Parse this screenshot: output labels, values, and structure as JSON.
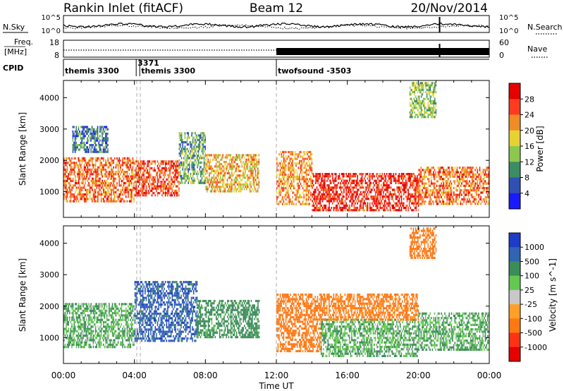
{
  "header": {
    "station": "Rankin Inlet (fitACF)",
    "beam": "Beam 12",
    "date": "20/Nov/2014"
  },
  "noise_panel": {
    "left_label": "N.Sky",
    "right_label": "N.Search",
    "left_ticks": [
      "10^5",
      "10^0"
    ],
    "right_ticks": [
      "10^5",
      "10^0"
    ]
  },
  "freq_panel": {
    "left_label_1": "Freq.",
    "left_label_2": "[MHz]",
    "left_ticks": [
      "18",
      "8"
    ],
    "right_label": "Nave",
    "right_ticks": [
      "60",
      "0"
    ]
  },
  "cpid": {
    "label": "CPID",
    "segments": [
      {
        "text": "themis 3300",
        "start_hour": 0.0
      },
      {
        "text": "3371",
        "start_hour": 4.1
      },
      {
        "text": "themis 3300",
        "start_hour": 4.3
      },
      {
        "text": "twofsound -3503",
        "start_hour": 12.0
      }
    ]
  },
  "axes": {
    "ylabel": "Slant Range [km]",
    "yticks": [
      "1000",
      "2000",
      "3000",
      "4000"
    ],
    "xlabel": "Time UT",
    "xticks": [
      "00:00",
      "04:00",
      "08:00",
      "12:00",
      "16:00",
      "20:00",
      "00:00"
    ]
  },
  "power_scale": {
    "label": "Power [dB]",
    "ticks": [
      "4",
      "8",
      "12",
      "16",
      "20",
      "24",
      "28"
    ],
    "colors": [
      "#1a1aff",
      "#3050b4",
      "#3c8c64",
      "#8cc850",
      "#e6d232",
      "#f08c28",
      "#ff3c1e",
      "#e60000"
    ]
  },
  "velocity_scale": {
    "label": "Velocity [m s^-1]",
    "ticks": [
      "1000",
      "500",
      "100",
      "25",
      "-25",
      "-100",
      "-500",
      "-1000"
    ],
    "colors": [
      "#1e3cc8",
      "#3264b4",
      "#3c8c5a",
      "#64c850",
      "#c8c8c8",
      "#ffa028",
      "#ff7814",
      "#ff3214",
      "#e60000"
    ]
  },
  "chart_data": [
    {
      "type": "heatmap",
      "title": "Power",
      "xlabel": "Time UT",
      "ylabel": "Slant Range [km]",
      "xlim": [
        0,
        24
      ],
      "ylim": [
        180,
        4550
      ],
      "colorbar": {
        "label": "Power [dB]",
        "range": [
          0,
          32
        ]
      },
      "regions": [
        {
          "t": [
            0.0,
            4.0
          ],
          "r": [
            700,
            2100
          ],
          "value": 24
        },
        {
          "t": [
            0.5,
            2.5
          ],
          "r": [
            2300,
            3100
          ],
          "value": 8
        },
        {
          "t": [
            4.0,
            6.5
          ],
          "r": [
            900,
            2000
          ],
          "value": 26
        },
        {
          "t": [
            6.5,
            8.0
          ],
          "r": [
            1300,
            2900
          ],
          "value": 12
        },
        {
          "t": [
            8.0,
            11.0
          ],
          "r": [
            1000,
            2200
          ],
          "value": 20
        },
        {
          "t": [
            12.0,
            14.0
          ],
          "r": [
            600,
            2300
          ],
          "value": 22
        },
        {
          "t": [
            14.0,
            20.0
          ],
          "r": [
            400,
            1600
          ],
          "value": 28
        },
        {
          "t": [
            20.0,
            24.0
          ],
          "r": [
            600,
            1800
          ],
          "value": 24
        },
        {
          "t": [
            19.5,
            21.0
          ],
          "r": [
            3400,
            4500
          ],
          "value": 14
        }
      ]
    },
    {
      "type": "heatmap",
      "title": "Velocity",
      "xlabel": "Time UT",
      "ylabel": "Slant Range [km]",
      "xlim": [
        0,
        24
      ],
      "ylim": [
        180,
        4550
      ],
      "colorbar": {
        "label": "Velocity [m s^-1]",
        "range": [
          -1000,
          1000
        ]
      },
      "regions": [
        {
          "t": [
            0.0,
            4.0
          ],
          "r": [
            700,
            2100
          ],
          "value": 100
        },
        {
          "t": [
            4.0,
            7.5
          ],
          "r": [
            900,
            2800
          ],
          "value": 800
        },
        {
          "t": [
            7.5,
            11.0
          ],
          "r": [
            1000,
            2200
          ],
          "value": 200
        },
        {
          "t": [
            12.0,
            14.5
          ],
          "r": [
            600,
            2400
          ],
          "value": -300
        },
        {
          "t": [
            14.5,
            20.0
          ],
          "r": [
            400,
            1600
          ],
          "value": 100
        },
        {
          "t": [
            14.5,
            20.0
          ],
          "r": [
            1600,
            2400
          ],
          "value": -200
        },
        {
          "t": [
            20.0,
            24.0
          ],
          "r": [
            600,
            1800
          ],
          "value": 100
        },
        {
          "t": [
            19.5,
            21.0
          ],
          "r": [
            3500,
            4500
          ],
          "value": -300
        }
      ]
    }
  ]
}
